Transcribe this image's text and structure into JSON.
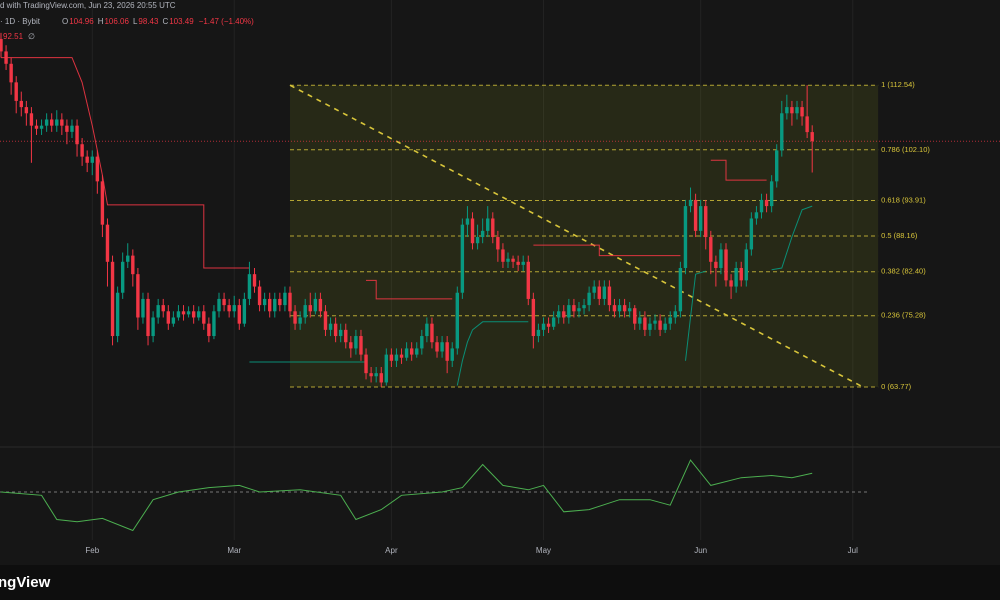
{
  "header": {
    "caption": "d with TradingView.com, Jun 23, 2026 20:55 UTC",
    "symbol": "· 1D · Bybit",
    "legend": [
      {
        "key": "O",
        "value": "104.96"
      },
      {
        "key": "H",
        "value": "106.06"
      },
      {
        "key": "L",
        "value": "98.43"
      },
      {
        "key": "C",
        "value": "103.49"
      },
      {
        "key": "",
        "value": "−1.47 (−1.40%)"
      }
    ],
    "indicator": "92.51",
    "indicator_suffix": "∅"
  },
  "footer": {
    "brand": "ngView"
  },
  "chart_data": {
    "type": "candlestick",
    "ylim": [
      55.2,
      123.4
    ],
    "xlim": [
      0,
      195
    ],
    "xticks": [
      {
        "value": 18,
        "label": "Feb"
      },
      {
        "value": 46,
        "label": "Mar"
      },
      {
        "value": 77,
        "label": "Apr"
      },
      {
        "value": 107,
        "label": "May"
      },
      {
        "value": 138,
        "label": "Jun"
      },
      {
        "value": 168,
        "label": "Jul"
      }
    ],
    "up_color": "#089981",
    "down_color": "#f23645",
    "open": [
      120,
      118,
      116,
      113,
      110,
      109,
      108,
      106,
      105.5,
      106,
      107,
      106,
      107,
      106,
      105,
      106,
      103,
      101,
      100,
      101,
      97,
      90,
      84,
      72,
      79,
      84,
      85,
      82,
      75,
      78,
      72,
      75,
      77,
      76,
      74,
      75,
      76,
      75.5,
      76,
      75,
      76,
      74,
      72,
      76,
      78,
      77,
      76,
      77,
      74,
      78,
      82,
      80,
      77,
      78,
      76,
      78,
      77,
      79,
      76,
      74,
      75,
      77,
      76,
      78,
      76,
      73,
      74,
      72,
      73,
      71,
      70,
      72,
      69,
      66,
      65.5,
      66,
      64.5,
      69,
      68,
      69,
      68.5,
      70,
      69,
      70,
      72,
      74,
      71,
      69.5,
      71,
      68,
      70,
      79,
      90,
      91,
      87,
      88,
      89,
      91,
      88,
      86,
      84,
      84.5,
      84,
      83.5,
      84,
      78,
      72,
      73,
      74,
      73.5,
      75,
      76,
      75,
      77,
      76,
      76.5,
      77,
      79,
      80,
      78,
      80,
      77,
      76,
      77,
      76,
      76.5,
      74,
      75,
      73,
      74,
      74.5,
      73,
      74,
      75,
      76,
      83,
      93,
      94,
      89,
      93,
      88,
      84,
      83,
      86,
      81,
      80,
      83,
      81,
      86,
      91,
      92,
      94,
      93,
      97,
      102,
      108,
      109,
      108,
      109,
      107.5,
      104.96
    ],
    "high": [
      121,
      119,
      117,
      114,
      111.5,
      110,
      109,
      107,
      107,
      108,
      108,
      108.5,
      108,
      107,
      107,
      107,
      104,
      102,
      102,
      102,
      98,
      91,
      85,
      80,
      85.5,
      87,
      86,
      83,
      79,
      79,
      76,
      78,
      78,
      77,
      76,
      77,
      77,
      76.8,
      77,
      76.8,
      77,
      75,
      77,
      79,
      79,
      78,
      78.5,
      78,
      79,
      84,
      83,
      81,
      79,
      79,
      79,
      79,
      80,
      80,
      77,
      76,
      78,
      79,
      79,
      79,
      77,
      75,
      75,
      74,
      74,
      72,
      73,
      73,
      70,
      67,
      67,
      67,
      70,
      70,
      70,
      70,
      71,
      71,
      71,
      73,
      75,
      75,
      72,
      72,
      72,
      71,
      80,
      91,
      93,
      92,
      90,
      91,
      93,
      92,
      89,
      87,
      85.5,
      85,
      85,
      85,
      85,
      79,
      74,
      75,
      75,
      76,
      77,
      77,
      78,
      78,
      77.5,
      78,
      80,
      81,
      81,
      81,
      81,
      78,
      78,
      78,
      77.5,
      77,
      76,
      76,
      75,
      75.5,
      75.5,
      75,
      76,
      77,
      84,
      94,
      96,
      95,
      94,
      94,
      89,
      85,
      87,
      87,
      82,
      84,
      84,
      87,
      92,
      93,
      95,
      95,
      98,
      103,
      110,
      111,
      110,
      110,
      110,
      112.54,
      106.06
    ],
    "low": [
      117,
      115,
      111,
      108,
      107.5,
      106,
      100,
      104.5,
      104.5,
      105,
      105,
      105,
      104.5,
      103,
      104,
      101,
      99.5,
      98.5,
      98,
      95,
      88,
      80,
      70.5,
      71,
      78,
      83,
      80,
      73,
      74,
      70.5,
      71,
      74,
      75,
      73,
      73.5,
      74.5,
      74.5,
      75,
      74,
      74.5,
      73,
      71,
      71.5,
      75,
      76,
      75,
      75,
      73,
      73.5,
      77,
      79,
      76,
      76,
      75,
      75,
      76,
      76,
      75,
      73,
      73,
      74,
      75,
      75.5,
      75,
      72,
      72,
      71,
      71,
      70,
      68.5,
      69,
      68,
      65,
      64.5,
      64.5,
      63.77,
      64,
      67,
      67,
      67.5,
      68,
      68,
      68.5,
      69,
      71,
      70,
      68.5,
      68.5,
      66,
      67,
      69,
      78,
      88,
      86,
      86,
      87,
      88,
      87,
      84,
      83,
      83,
      83,
      82.5,
      82.5,
      77,
      70,
      71,
      72,
      72.5,
      73,
      74,
      74,
      74,
      75,
      75,
      75.5,
      76,
      78,
      77,
      77,
      76,
      75,
      75,
      75,
      75,
      73,
      73,
      72,
      72,
      73,
      72,
      72.5,
      73,
      74,
      75,
      82,
      92,
      88,
      88,
      86,
      82,
      80,
      82,
      80,
      78,
      79,
      80,
      80,
      85,
      90,
      91,
      92,
      92,
      96,
      101,
      107,
      106,
      107,
      106,
      104,
      98.43
    ],
    "close": [
      118,
      116,
      113,
      110,
      109,
      108,
      106,
      105.5,
      106,
      107,
      106,
      107,
      106,
      105,
      106,
      103,
      101,
      100,
      101,
      97,
      90,
      84,
      72,
      79,
      84,
      85,
      82,
      75,
      78,
      72,
      75,
      77,
      76,
      74,
      75,
      76,
      75.5,
      76,
      75,
      76,
      74,
      72,
      76,
      78,
      77,
      76,
      77,
      74,
      78,
      82,
      80,
      77,
      78,
      76,
      78,
      77,
      79,
      76,
      74,
      75,
      77,
      76,
      78,
      76,
      73,
      74,
      72,
      73,
      71,
      70,
      72,
      69,
      66,
      65.5,
      66,
      64.5,
      69,
      68,
      69,
      68.5,
      70,
      69,
      70,
      72,
      74,
      71,
      69.5,
      71,
      68,
      70,
      79,
      90,
      91,
      87,
      88,
      89,
      91,
      88,
      86,
      84,
      84.5,
      84,
      83.5,
      84,
      78,
      72,
      73,
      74,
      73.5,
      75,
      76,
      75,
      77,
      76,
      76.5,
      77,
      79,
      80,
      78,
      80,
      77,
      76,
      77,
      76,
      76.5,
      74,
      75,
      73,
      74,
      74.5,
      73,
      74,
      75,
      76,
      83,
      93,
      94,
      89,
      93,
      88,
      84,
      83,
      86,
      81,
      80,
      83,
      81,
      86,
      91,
      92,
      94,
      93,
      97,
      102,
      108,
      109,
      108,
      109,
      107.5,
      104.96,
      103.49
    ],
    "stop_segments": [
      {
        "color": "#f23645",
        "x": [
          0,
          14,
          16,
          18,
          20,
          21,
          40,
          40,
          49
        ],
        "values": [
          117,
          117,
          113,
          106,
          98,
          93.2,
          93.2,
          83,
          83
        ]
      },
      {
        "color": "#089981",
        "x": [
          49,
          72
        ],
        "values": [
          67.8,
          67.8
        ]
      },
      {
        "color": "#f23645",
        "x": [
          72,
          74,
          74,
          89
        ],
        "values": [
          81,
          81,
          78,
          78
        ]
      },
      {
        "color": "#089981",
        "x": [
          90,
          91,
          92,
          93,
          95,
          104
        ],
        "values": [
          64,
          68,
          71,
          73,
          74.3,
          74.3
        ]
      },
      {
        "color": "#f23645",
        "x": [
          105,
          118,
          118,
          134
        ],
        "values": [
          86.7,
          86.7,
          85,
          85
        ]
      },
      {
        "color": "#089981",
        "x": [
          135,
          136,
          137,
          139
        ],
        "values": [
          68,
          75,
          82,
          82.5
        ]
      },
      {
        "color": "#f23645",
        "x": [
          140,
          143,
          143,
          151
        ],
        "values": [
          100.4,
          100.4,
          97.2,
          97.2
        ]
      },
      {
        "color": "#089981",
        "x": [
          152,
          154,
          156,
          158,
          160
        ],
        "values": [
          82.7,
          83,
          88,
          92.4,
          93
        ]
      }
    ],
    "fib": {
      "color": "#d8c53a",
      "x": [
        57,
        173
      ],
      "levels": [
        {
          "value": 112.54,
          "label": "1 (112.54)"
        },
        {
          "value": 102.1,
          "label": "0.786 (102.10)"
        },
        {
          "value": 93.91,
          "label": "0.618 (93.91)"
        },
        {
          "value": 88.16,
          "label": "0.5 (88.16)"
        },
        {
          "value": 82.4,
          "label": "0.382 (82.40)"
        },
        {
          "value": 75.28,
          "label": "0.236 (75.28)"
        },
        {
          "value": 63.77,
          "label": "0 (63.77)"
        }
      ]
    },
    "trendline": {
      "x": [
        57,
        170
      ],
      "values": [
        112.54,
        63.77
      ]
    },
    "oscillator": {
      "color": "#4caf50",
      "ylim": [
        0,
        100
      ],
      "reference": 50,
      "x": [
        0,
        8,
        11,
        15,
        20,
        26,
        30,
        35,
        41,
        47,
        51,
        59,
        67,
        70,
        75,
        79,
        87,
        91,
        95,
        99,
        104,
        107,
        111,
        116,
        122,
        128,
        132,
        136,
        140,
        146,
        152,
        156,
        160
      ],
      "values": [
        50,
        47,
        25,
        23,
        26,
        15,
        43,
        50,
        54,
        56,
        50,
        52,
        47,
        25,
        34,
        47,
        50,
        54,
        75,
        56,
        52,
        56,
        32,
        34,
        43,
        43,
        38,
        79,
        56,
        63,
        65,
        63,
        67
      ]
    }
  }
}
